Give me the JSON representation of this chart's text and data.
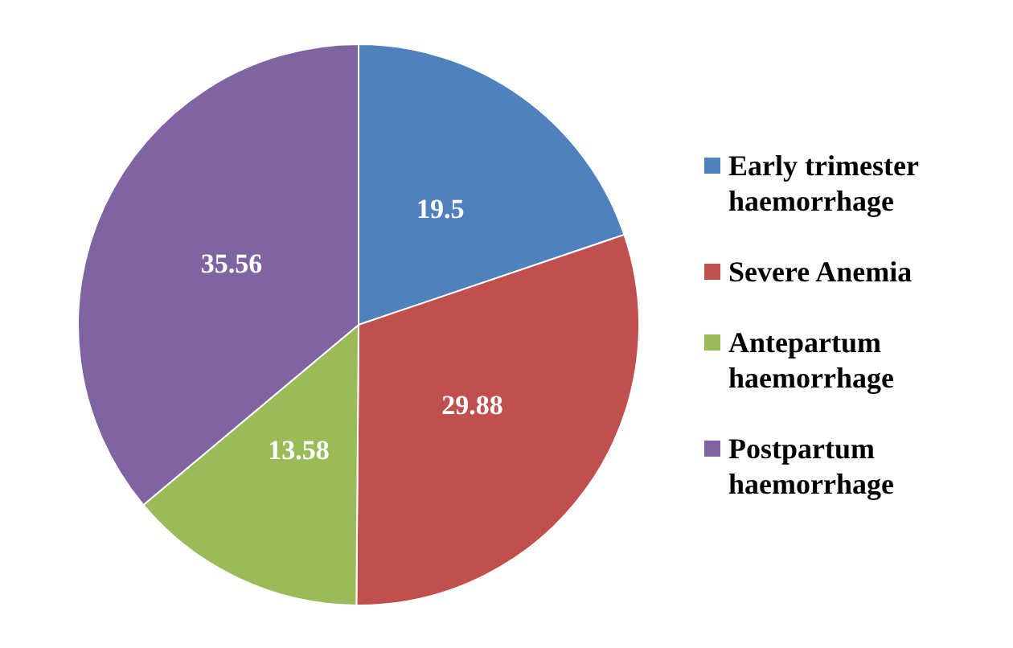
{
  "chart_data": {
    "type": "pie",
    "categories": [
      "Early trimester haemorrhage",
      "Severe Anemia",
      "Antepartum haemorrhage",
      "Postpartum haemorrhage"
    ],
    "values": [
      19.5,
      29.88,
      13.58,
      35.56
    ],
    "colors": [
      "#4f81bd",
      "#c0504d",
      "#9bbb59",
      "#8064a2"
    ],
    "data_labels": true,
    "legend": "right"
  }
}
